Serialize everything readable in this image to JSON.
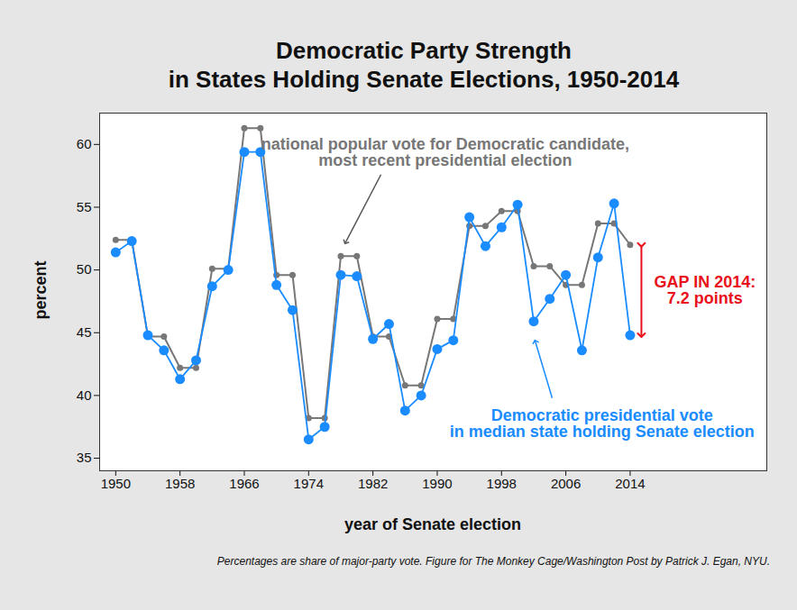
{
  "chart_data": {
    "type": "line",
    "title": "Democratic Party Strength\nin States Holding Senate Elections, 1950-2014",
    "x_label": "year of Senate election",
    "y_label": "percent",
    "caption": "Percentages are share of major-party vote. Figure for The Monkey Cage/Washington Post by Patrick J. Egan, NYU.",
    "x": [
      1950,
      1952,
      1954,
      1956,
      1958,
      1960,
      1962,
      1964,
      1966,
      1968,
      1970,
      1972,
      1974,
      1976,
      1978,
      1980,
      1982,
      1984,
      1986,
      1988,
      1990,
      1992,
      1994,
      1996,
      1998,
      2000,
      2002,
      2004,
      2006,
      2008,
      2010,
      2012,
      2014
    ],
    "series": [
      {
        "name": "national popular vote for Democratic candidate,\nmost recent presidential election",
        "color": "#777777",
        "marker": "circle",
        "line_style": "solid",
        "values": [
          52.4,
          52.4,
          44.7,
          44.7,
          42.2,
          42.2,
          50.1,
          50.1,
          61.3,
          61.3,
          49.6,
          49.6,
          38.2,
          38.2,
          51.1,
          51.1,
          44.7,
          44.7,
          40.8,
          40.8,
          46.1,
          46.1,
          53.5,
          53.5,
          54.7,
          54.7,
          50.3,
          50.3,
          48.8,
          48.8,
          53.7,
          53.7,
          52.0
        ]
      },
      {
        "name": "Democratic presidential vote\nin median state holding Senate election",
        "color": "#1a8cff",
        "marker": "circle",
        "line_style": "solid",
        "values": [
          51.4,
          52.3,
          44.8,
          43.6,
          41.3,
          42.8,
          48.7,
          50.0,
          59.4,
          59.4,
          48.8,
          46.8,
          36.5,
          37.5,
          49.6,
          49.5,
          44.5,
          45.7,
          38.8,
          40.0,
          43.7,
          44.4,
          54.2,
          51.9,
          53.4,
          55.2,
          45.9,
          47.7,
          49.6,
          43.6,
          51.0,
          55.3,
          44.8
        ]
      }
    ],
    "annotations": [
      {
        "text": "GAP IN 2014:\n7.2 points",
        "color": "#e8101a"
      }
    ],
    "xlim": [
      1948,
      2031
    ],
    "xticks": [
      1950,
      1958,
      1966,
      1974,
      1982,
      1990,
      1998,
      2006,
      2014
    ],
    "ylim": [
      34,
      62.5
    ],
    "yticks": [
      35,
      40,
      45,
      50,
      55,
      60
    ],
    "grid": false
  }
}
